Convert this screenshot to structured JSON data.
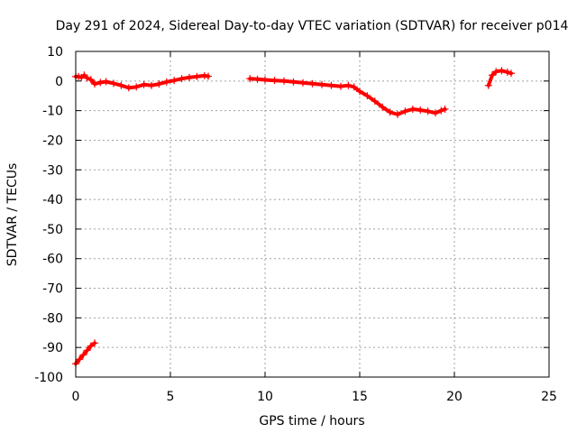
{
  "chart_data": {
    "type": "scatter",
    "title": "Day 291 of 2024, Sidereal Day-to-day VTEC variation (SDTVAR) for receiver p014",
    "xlabel": "GPS time / hours",
    "ylabel": "SDTVAR / TECUs",
    "xlim": [
      0,
      25
    ],
    "ylim": [
      -100,
      10
    ],
    "xticks": [
      0,
      5,
      10,
      15,
      20,
      25
    ],
    "yticks": [
      -100,
      -90,
      -80,
      -70,
      -60,
      -50,
      -40,
      -30,
      -20,
      -10,
      0,
      10
    ],
    "grid": true,
    "marker": "+",
    "color": "#ff0000",
    "series": [
      {
        "name": "segment-1",
        "points": [
          [
            0.0,
            1.5
          ],
          [
            0.15,
            1.5
          ],
          [
            0.3,
            1.2
          ],
          [
            0.45,
            2.0
          ],
          [
            0.6,
            1.0
          ],
          [
            0.8,
            0.5
          ],
          [
            1.0,
            -1.0
          ],
          [
            1.3,
            -0.5
          ],
          [
            1.6,
            -0.2
          ],
          [
            2.0,
            -0.8
          ],
          [
            2.4,
            -1.5
          ],
          [
            2.8,
            -2.3
          ],
          [
            3.2,
            -2.0
          ],
          [
            3.6,
            -1.2
          ],
          [
            4.0,
            -1.5
          ],
          [
            4.4,
            -1.0
          ],
          [
            4.8,
            -0.3
          ],
          [
            5.2,
            0.2
          ],
          [
            5.6,
            0.8
          ],
          [
            6.0,
            1.2
          ],
          [
            6.4,
            1.5
          ],
          [
            6.8,
            1.8
          ],
          [
            7.0,
            1.6
          ]
        ]
      },
      {
        "name": "segment-2",
        "points": [
          [
            9.2,
            0.8
          ],
          [
            9.6,
            0.6
          ],
          [
            10.0,
            0.4
          ],
          [
            10.5,
            0.2
          ],
          [
            11.0,
            0.0
          ],
          [
            11.5,
            -0.3
          ],
          [
            12.0,
            -0.6
          ],
          [
            12.5,
            -0.9
          ],
          [
            13.0,
            -1.2
          ],
          [
            13.5,
            -1.5
          ],
          [
            14.0,
            -1.8
          ],
          [
            14.4,
            -1.5
          ],
          [
            14.7,
            -2.0
          ],
          [
            15.0,
            -3.5
          ],
          [
            15.4,
            -5.0
          ],
          [
            15.8,
            -6.8
          ],
          [
            16.2,
            -8.8
          ],
          [
            16.6,
            -10.5
          ],
          [
            17.0,
            -11.3
          ],
          [
            17.4,
            -10.2
          ],
          [
            17.8,
            -9.5
          ],
          [
            18.2,
            -9.8
          ],
          [
            18.6,
            -10.2
          ],
          [
            19.0,
            -10.8
          ],
          [
            19.3,
            -10.0
          ],
          [
            19.5,
            -9.5
          ]
        ]
      },
      {
        "name": "segment-3",
        "points": [
          [
            21.8,
            -1.5
          ],
          [
            22.0,
            2.0
          ],
          [
            22.2,
            3.2
          ],
          [
            22.5,
            3.5
          ],
          [
            22.8,
            3.0
          ],
          [
            23.0,
            2.6
          ]
        ]
      },
      {
        "name": "segment-4",
        "points": [
          [
            0.0,
            -95.5
          ],
          [
            0.2,
            -94.0
          ],
          [
            0.4,
            -92.5
          ],
          [
            0.6,
            -91.0
          ],
          [
            0.8,
            -89.5
          ],
          [
            1.0,
            -88.5
          ]
        ]
      }
    ]
  }
}
